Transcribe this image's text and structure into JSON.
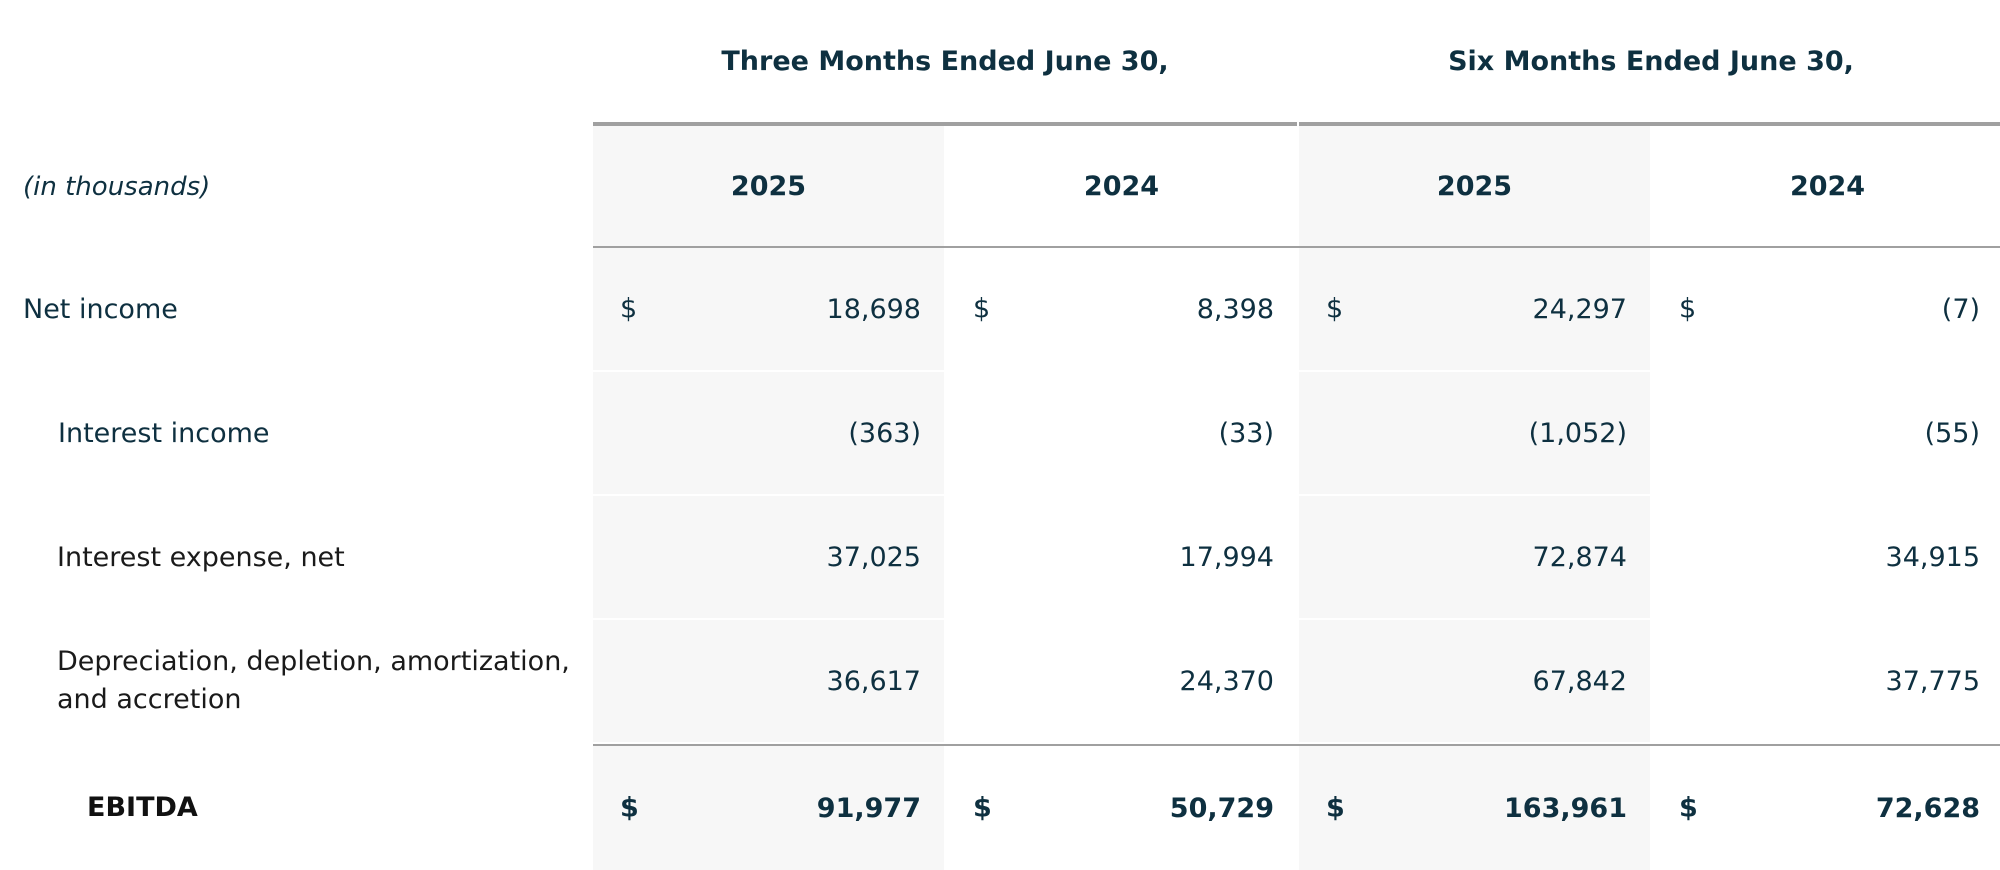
{
  "header": {
    "group_three": "Three Months Ended June 30,",
    "group_six": "Six Months Ended June 30,",
    "units_label": "(in thousands)",
    "years": [
      "2025",
      "2024",
      "2025",
      "2024"
    ]
  },
  "rows": [
    {
      "label": "Net income",
      "currency": "$",
      "values": [
        "18,698",
        "8,398",
        "24,297",
        "(7)"
      ]
    },
    {
      "label": "Interest income",
      "values": [
        "(363)",
        "(33)",
        "(1,052)",
        "(55)"
      ]
    },
    {
      "label": "Interest expense, net",
      "values": [
        "37,025",
        "17,994",
        "72,874",
        "34,915"
      ]
    },
    {
      "label_line1": "Depreciation, depletion, amortization,",
      "label_line2": "and accretion",
      "values": [
        "36,617",
        "24,370",
        "67,842",
        "37,775"
      ]
    },
    {
      "label": "EBITDA",
      "currency": "$",
      "values": [
        "91,977",
        "50,729",
        "163,961",
        "72,628"
      ]
    }
  ]
}
